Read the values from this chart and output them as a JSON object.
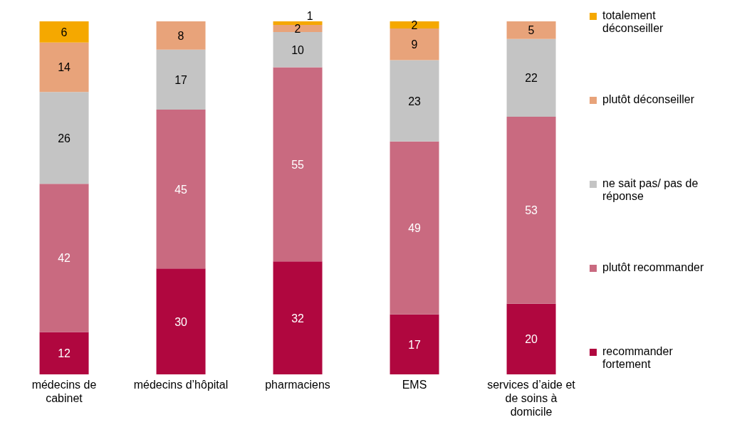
{
  "chart_data": {
    "type": "bar",
    "stacked": true,
    "relative": false,
    "data_labels": true,
    "legend": "right",
    "categories": [
      "médecins de cabinet",
      "médecins d’hôpital",
      "pharmaciens",
      "EMS",
      "services d’aide et de soins à domicile"
    ],
    "series": [
      {
        "name": "recommander fortement",
        "color": "#b0073f",
        "values": [
          12,
          30,
          32,
          17,
          20
        ]
      },
      {
        "name": "plutôt recommander",
        "color": "#c96a80",
        "values": [
          42,
          45,
          55,
          49,
          53
        ]
      },
      {
        "name": "ne sait pas/ pas de réponse",
        "color": "#c4c4c4",
        "values": [
          26,
          17,
          10,
          23,
          22
        ]
      },
      {
        "name": "plutôt déconseiller",
        "color": "#e8a37a",
        "values": [
          14,
          8,
          2,
          9,
          5
        ]
      },
      {
        "name": "totalement déconseiller",
        "color": "#f5a800",
        "values": [
          6,
          null,
          1,
          2,
          null
        ]
      }
    ]
  }
}
